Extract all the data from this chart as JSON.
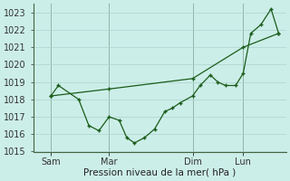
{
  "background_color": "#cceee8",
  "grid_color": "#aad4ce",
  "line_color": "#1a5c1a",
  "xlabel": "Pression niveau de la mer( hPa )",
  "ylim": [
    1015,
    1023.5
  ],
  "yticks": [
    1015,
    1016,
    1017,
    1018,
    1019,
    1020,
    1021,
    1022,
    1023
  ],
  "xtick_labels": [
    "Sam",
    "Mar",
    "Dim",
    "Lun"
  ],
  "xtick_positions": [
    0.07,
    0.3,
    0.63,
    0.83
  ],
  "vline_positions": [
    0.07,
    0.3,
    0.63,
    0.83
  ],
  "xlim": [
    0.0,
    1.0
  ],
  "series1_x": [
    0.07,
    0.1,
    0.18,
    0.22,
    0.26,
    0.3,
    0.34,
    0.37,
    0.4,
    0.44,
    0.48,
    0.52,
    0.55,
    0.58,
    0.63,
    0.66,
    0.7,
    0.73,
    0.76,
    0.8,
    0.83,
    0.86,
    0.9,
    0.94,
    0.97
  ],
  "series1_y": [
    1018.2,
    1018.8,
    1018.0,
    1016.5,
    1016.2,
    1017.0,
    1016.8,
    1015.8,
    1015.5,
    1015.8,
    1016.3,
    1017.3,
    1017.5,
    1017.8,
    1018.2,
    1018.8,
    1019.4,
    1019.0,
    1018.8,
    1018.8,
    1019.5,
    1021.8,
    1022.3,
    1023.2,
    1021.8
  ],
  "series2_x": [
    0.07,
    0.3,
    0.63,
    0.83,
    0.97
  ],
  "series2_y": [
    1018.2,
    1018.6,
    1019.2,
    1021.0,
    1021.8
  ]
}
